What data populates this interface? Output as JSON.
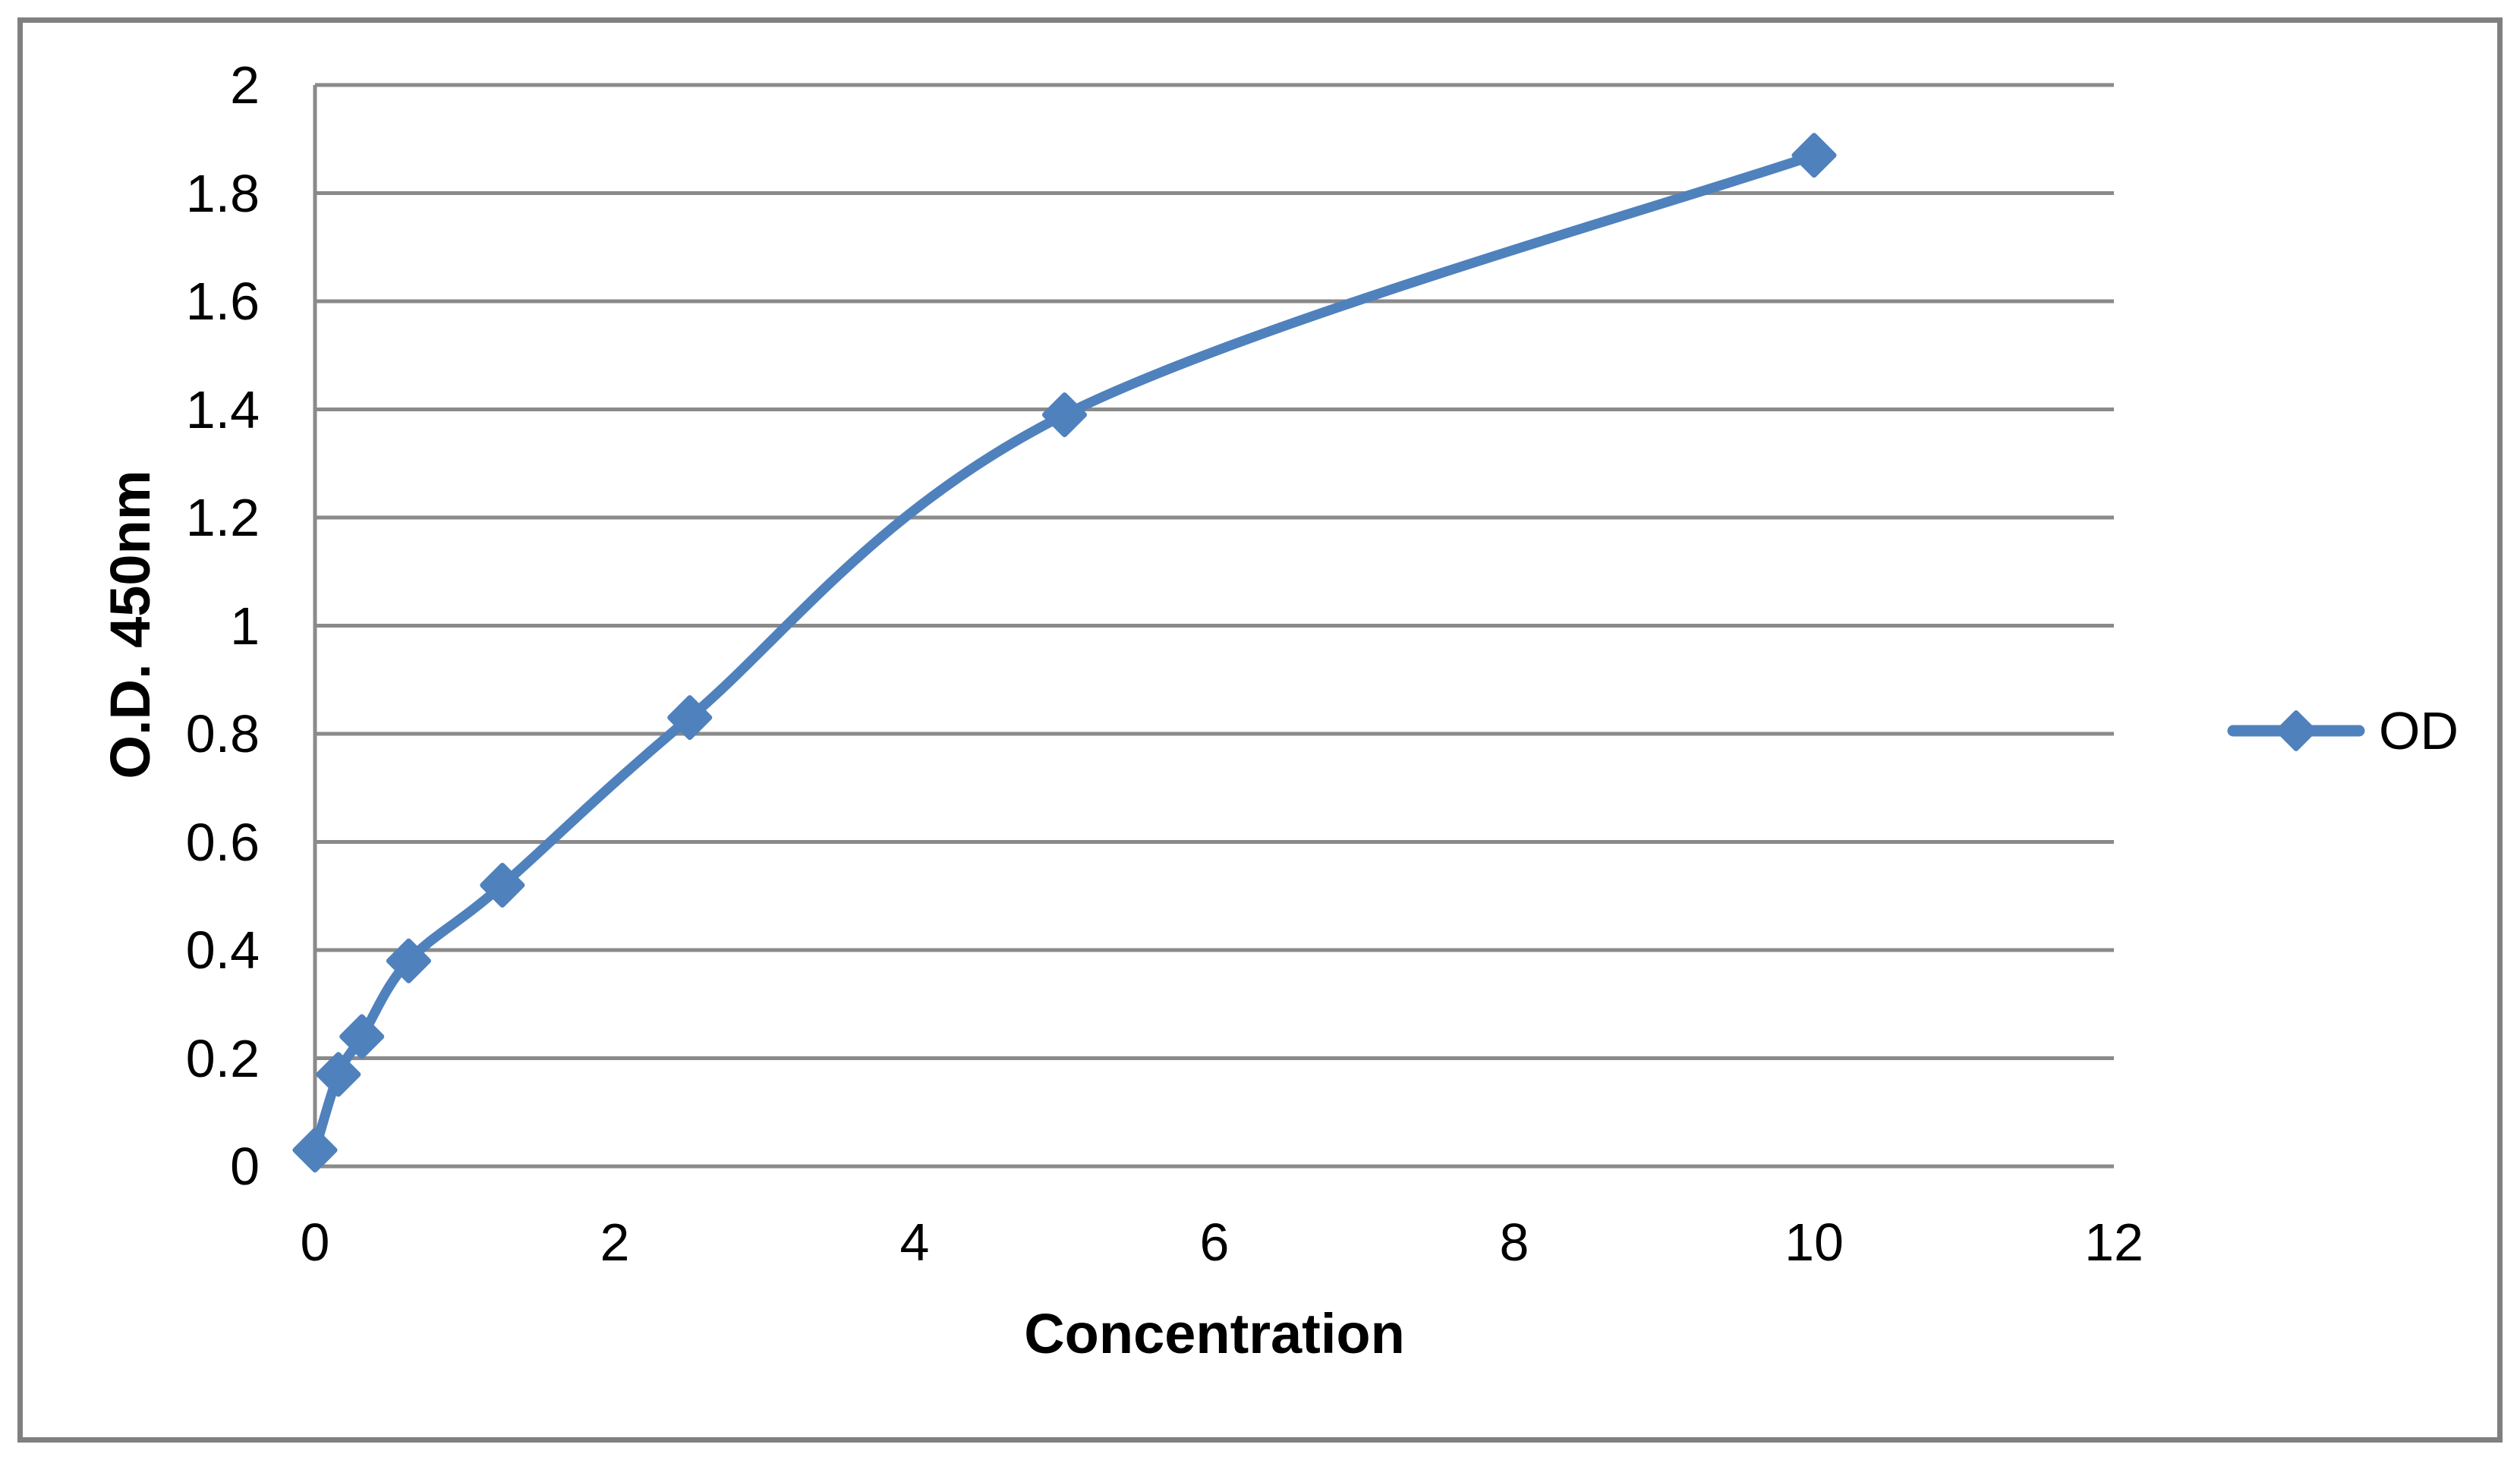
{
  "chart_data": {
    "type": "line",
    "title": "",
    "xlabel": "Concentration",
    "ylabel": "O.D. 450nm",
    "xlim": [
      0,
      12
    ],
    "ylim": [
      0,
      2
    ],
    "grid": "horizontal-major",
    "smoothed_line": true,
    "marker": "diamond",
    "legend_position": "right-middle",
    "x_ticks": [
      0,
      2,
      4,
      6,
      8,
      10,
      12
    ],
    "x_tick_labels": [
      "0",
      "2",
      "4",
      "6",
      "8",
      "10",
      "12"
    ],
    "y_ticks": [
      0,
      0.2,
      0.4,
      0.6,
      0.8,
      1,
      1.2,
      1.4,
      1.6,
      1.8,
      2
    ],
    "y_tick_labels": [
      "0",
      "0.2",
      "0.4",
      "0.6",
      "0.8",
      "1",
      "1.2",
      "1.4",
      "1.6",
      "1.8",
      "2"
    ],
    "series": [
      {
        "name": "OD",
        "x": [
          0,
          0.156,
          0.3125,
          0.625,
          1.25,
          2.5,
          5,
          10
        ],
        "y": [
          0.03,
          0.17,
          0.24,
          0.38,
          0.52,
          0.83,
          1.39,
          1.87
        ]
      }
    ],
    "colors": {
      "series": "#4f81bd",
      "gridline": "#8a8a8a",
      "axis": "#8a8a8a",
      "figure_border": "#808080",
      "text": "#000000"
    }
  },
  "axes": {
    "x_title": "Concentration",
    "y_title": "O.D. 450nm"
  },
  "legend": {
    "label": "OD"
  }
}
